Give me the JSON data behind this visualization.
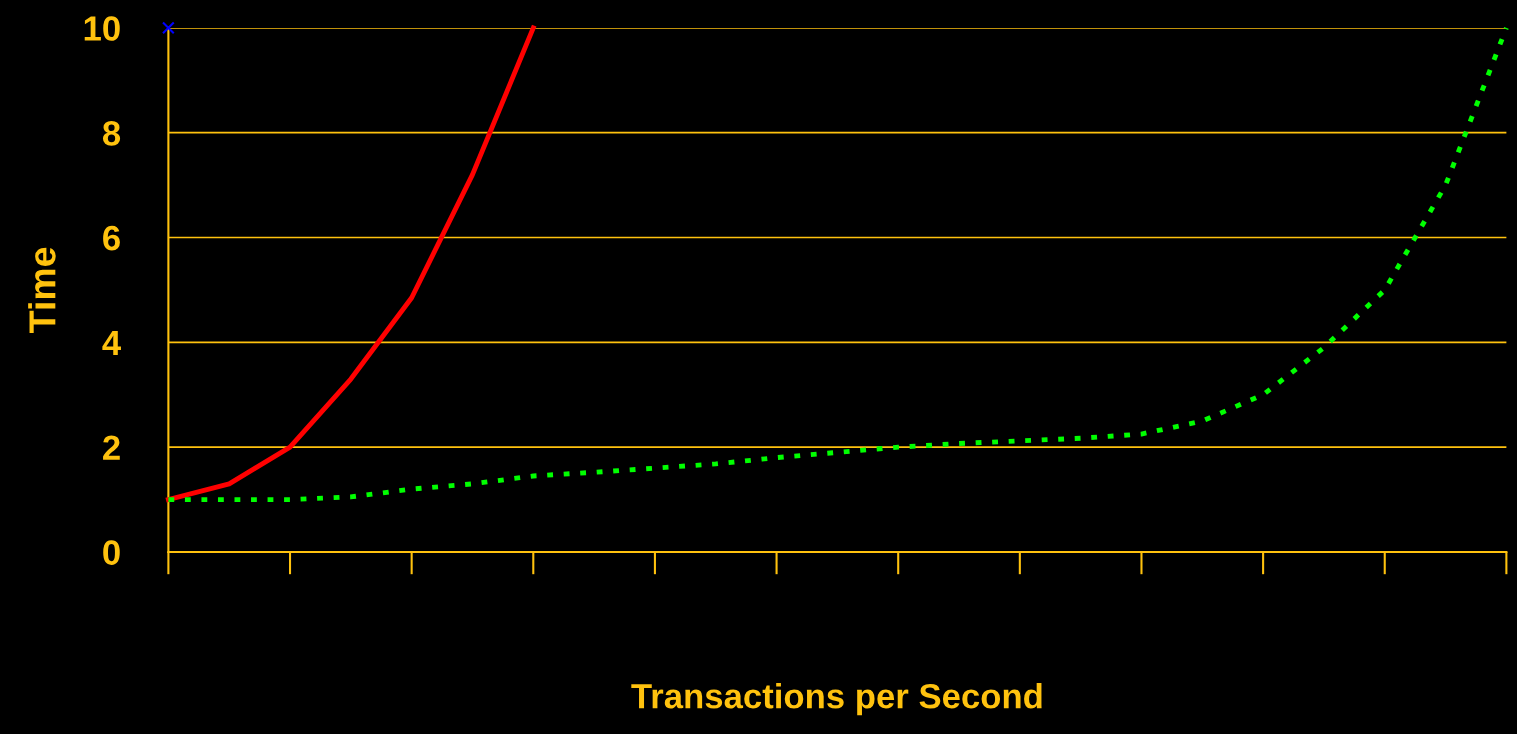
{
  "chart_data": {
    "type": "line",
    "xlabel": "Transactions per Second",
    "ylabel": "Time",
    "categories": [
      null,
      null,
      null,
      null,
      null,
      null,
      null,
      null,
      null,
      null,
      null,
      null,
      null,
      null,
      null,
      null,
      null,
      null,
      null,
      null,
      null,
      null,
      null
    ],
    "series": [
      {
        "color": "#ff0000",
        "line_style": "solid",
        "values": [
          1.0,
          1.3,
          2.0,
          3.3,
          4.85,
          7.2,
          10.0,
          null,
          null,
          null,
          null,
          null,
          null,
          null,
          null,
          null,
          null,
          null,
          null,
          null,
          null,
          null,
          null
        ]
      },
      {
        "color": "#00ff00",
        "line_style": "dotted",
        "values": [
          1.0,
          1.0,
          1.0,
          1.05,
          1.2,
          1.3,
          1.45,
          1.52,
          1.6,
          1.68,
          1.8,
          1.9,
          2.0,
          2.07,
          2.12,
          2.17,
          2.25,
          2.5,
          3.0,
          3.9,
          5.0,
          7.0,
          10.0
        ]
      },
      {
        "type": "scatter",
        "color": "#0000ff",
        "marker": "cross",
        "values": [
          10,
          null,
          null,
          null,
          null,
          null,
          null,
          null,
          null,
          null,
          null,
          null,
          null,
          null,
          null,
          null,
          null,
          null,
          null,
          null,
          null,
          null,
          null
        ]
      }
    ],
    "ylim": [
      0,
      10
    ],
    "yticks": [
      0,
      2,
      4,
      6,
      8,
      10
    ],
    "grid": "y",
    "legend": false,
    "marker": "none"
  }
}
